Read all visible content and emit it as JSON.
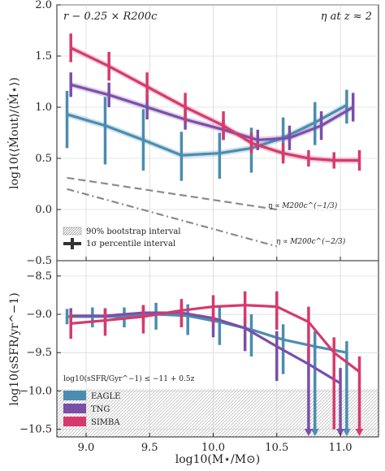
{
  "colors": {
    "EAGLE": "#4a8db0",
    "TNG": "#7b4fa8",
    "SIMBA": "#d63a6c",
    "ref_lines": "#8a8a8a",
    "grid": "#cccccc",
    "hatch": "#bdbdbd"
  },
  "chart_data": [
    {
      "type": "line",
      "panel": "top",
      "annotations": {
        "top_left": "r − 0.25 × R200c",
        "top_right": "η at z ≈ 2",
        "ref_slope_1": "η ∝ M200c^(−1/3)",
        "ref_slope_2": "η ∝ M200c^(−2/3)"
      },
      "ylabel": "log10(⟨Ṁout⟩/⟨Ṁ⋆⟩)",
      "xlim": [
        8.77,
        11.3
      ],
      "ylim": [
        -0.5,
        2.0
      ],
      "yticks": [
        "−0.5",
        "0.0",
        "0.5",
        "1.0",
        "1.5",
        "2.0"
      ],
      "legend": {
        "placement": "bottom-left",
        "entries": [
          "90% bootstrap interval",
          "1σ percentile interval"
        ]
      },
      "series": [
        {
          "name": "EAGLE",
          "x": [
            8.85,
            9.15,
            9.45,
            9.75,
            10.05,
            10.3,
            10.55,
            10.8,
            11.05
          ],
          "y": [
            0.93,
            0.82,
            0.68,
            0.53,
            0.55,
            0.6,
            0.7,
            0.85,
            1.02
          ],
          "err_low": [
            0.33,
            0.38,
            0.3,
            0.25,
            0.25,
            0.24,
            0.22,
            0.22,
            0.18
          ],
          "err_high": [
            0.23,
            0.28,
            0.3,
            0.23,
            0.2,
            0.2,
            0.2,
            0.2,
            0.15
          ]
        },
        {
          "name": "TNG",
          "x": [
            8.88,
            9.18,
            9.48,
            9.78,
            10.08,
            10.35,
            10.6,
            10.85,
            11.1
          ],
          "y": [
            1.22,
            1.12,
            1.0,
            0.88,
            0.78,
            0.68,
            0.7,
            0.82,
            1.0
          ],
          "err_low": [
            0.12,
            0.12,
            0.12,
            0.1,
            0.1,
            0.1,
            0.12,
            0.14,
            0.14
          ],
          "err_high": [
            0.12,
            0.12,
            0.12,
            0.1,
            0.1,
            0.1,
            0.12,
            0.14,
            0.14
          ]
        },
        {
          "name": "SIMBA",
          "x": [
            8.88,
            9.18,
            9.48,
            9.78,
            10.08,
            10.3,
            10.55,
            10.75,
            10.95,
            11.15
          ],
          "y": [
            1.58,
            1.4,
            1.2,
            1.0,
            0.82,
            0.65,
            0.55,
            0.5,
            0.48,
            0.48
          ],
          "err_low": [
            0.14,
            0.14,
            0.14,
            0.14,
            0.14,
            0.1,
            0.1,
            0.08,
            0.08,
            0.1
          ],
          "err_high": [
            0.14,
            0.14,
            0.14,
            0.14,
            0.14,
            0.1,
            0.1,
            0.08,
            0.08,
            0.1
          ]
        }
      ],
      "reference_lines": [
        {
          "label": "η ∝ M200c^(−1/3)",
          "x": [
            8.85,
            10.5
          ],
          "y": [
            0.31,
            0.0
          ],
          "style": "dashed"
        },
        {
          "label": "η ∝ M200c^(−2/3)",
          "x": [
            8.85,
            10.5
          ],
          "y": [
            0.2,
            -0.36
          ],
          "style": "dash-dot"
        }
      ]
    },
    {
      "type": "line",
      "panel": "bottom",
      "xlabel": "log10(M⋆/M⊙)",
      "ylabel": "log10(sSFR/yr^−1)",
      "xlim": [
        8.77,
        11.3
      ],
      "ylim": [
        -10.6,
        -8.3
      ],
      "xticks": [
        "9.0",
        "9.5",
        "10.0",
        "10.5",
        "11.0"
      ],
      "yticks": [
        "−8.5",
        "−9.0",
        "−9.5",
        "−10.0",
        "−10.5"
      ],
      "quenched_threshold_label": "log10(sSFR/Gyr^−1) ≤ −11 + 0.5z",
      "quenched_threshold_y": -10.0,
      "legend": {
        "placement": "bottom-left",
        "entries": [
          "EAGLE",
          "TNG",
          "SIMBA"
        ]
      },
      "series": [
        {
          "name": "EAGLE",
          "x": [
            8.85,
            9.05,
            9.3,
            9.55,
            9.8,
            10.05,
            10.3,
            10.55,
            10.8,
            11.05
          ],
          "y": [
            -9.03,
            -9.03,
            -9.03,
            -9.0,
            -9.02,
            -9.1,
            -9.2,
            -9.33,
            -9.42,
            -9.5
          ],
          "err_low": [
            0.1,
            0.14,
            0.14,
            0.2,
            0.25,
            0.3,
            0.35,
            0.45,
            1.2,
            1.2
          ],
          "err_high": [
            0.1,
            0.12,
            0.12,
            0.15,
            0.15,
            0.2,
            0.2,
            0.2,
            0.2,
            0.15
          ]
        },
        {
          "name": "TNG",
          "x": [
            8.88,
            9.15,
            9.45,
            9.75,
            10.0,
            10.25,
            10.5,
            10.75,
            11.0
          ],
          "y": [
            -9.02,
            -9.02,
            -8.98,
            -8.98,
            -9.05,
            -9.18,
            -9.42,
            -9.65,
            -9.9
          ],
          "err_low": [
            0.14,
            0.14,
            0.14,
            0.18,
            0.25,
            0.3,
            0.45,
            1.0,
            1.0
          ],
          "err_high": [
            0.1,
            0.1,
            0.1,
            0.12,
            0.12,
            0.15,
            0.2,
            0.2,
            0.2
          ]
        },
        {
          "name": "SIMBA",
          "x": [
            8.88,
            9.15,
            9.45,
            9.75,
            10.0,
            10.25,
            10.5,
            10.75,
            10.95,
            11.15
          ],
          "y": [
            -9.12,
            -9.08,
            -9.03,
            -8.95,
            -8.9,
            -8.88,
            -8.9,
            -9.1,
            -9.5,
            -9.75
          ],
          "err_low": [
            0.2,
            0.2,
            0.22,
            0.22,
            0.22,
            0.25,
            0.3,
            0.5,
            1.0,
            1.0
          ],
          "err_high": [
            0.15,
            0.15,
            0.15,
            0.15,
            0.15,
            0.18,
            0.2,
            0.2,
            0.2,
            0.2
          ]
        }
      ]
    }
  ]
}
